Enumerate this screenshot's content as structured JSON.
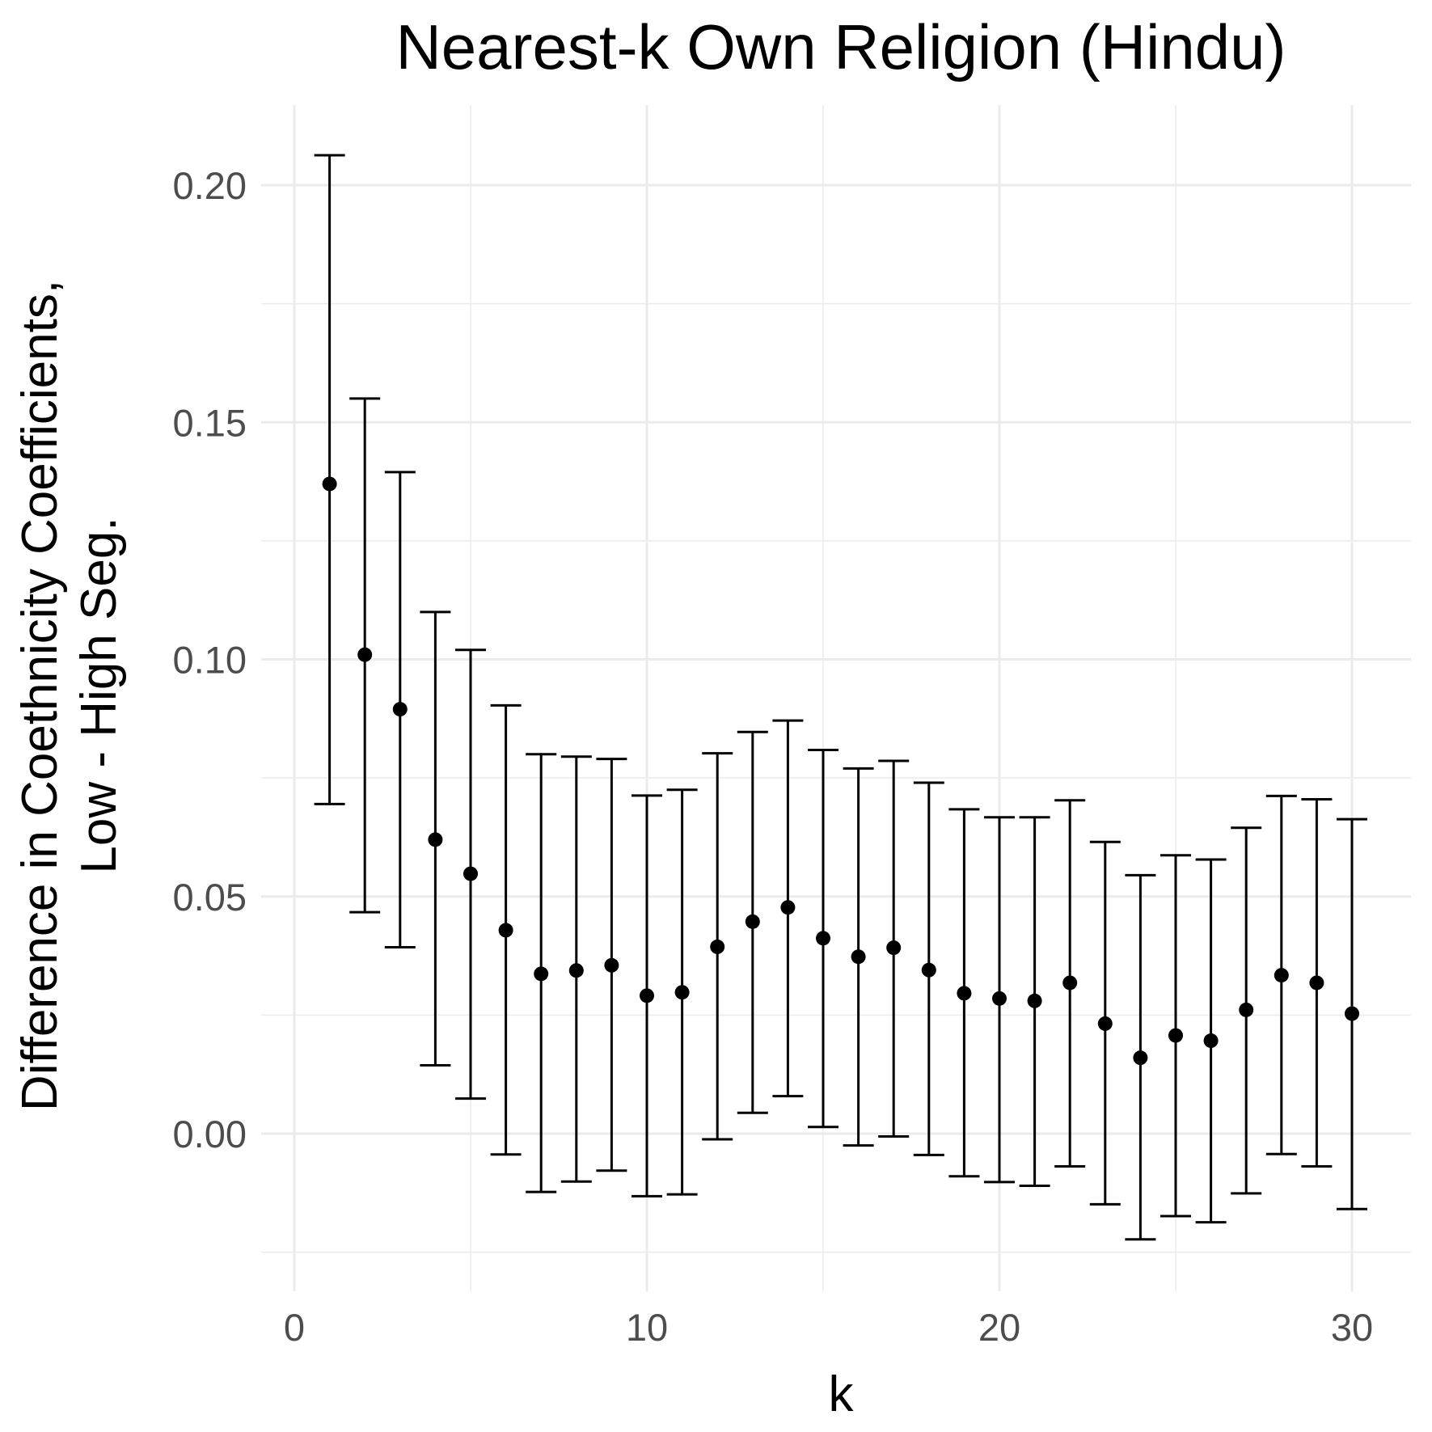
{
  "chart_data": {
    "type": "scatter",
    "title": "Nearest-k Own Religion (Hindu)",
    "xlabel": "k",
    "ylabel_lines": [
      "Difference in Coethnicity Coefficients,",
      "Low - High Seg."
    ],
    "xlim": [
      -1,
      31.5
    ],
    "ylim": [
      -0.032,
      0.217
    ],
    "x_ticks": [
      0,
      10,
      20,
      30
    ],
    "x_tick_labels": [
      "0",
      "10",
      "20",
      "30"
    ],
    "y_ticks": [
      0,
      0.05,
      0.1,
      0.15,
      0.2
    ],
    "y_tick_labels": [
      "0.00",
      "0.05",
      "0.10",
      "0.15",
      "0.20"
    ],
    "grid": true,
    "legend": "none",
    "series": [
      {
        "x": [
          1,
          2,
          3,
          4,
          5,
          6,
          7,
          8,
          9,
          10,
          11,
          12,
          13,
          14,
          15,
          16,
          17,
          18,
          19,
          20,
          21,
          22,
          23,
          24,
          25,
          26,
          27,
          28,
          29,
          30
        ],
        "y": [
          0.137,
          0.101,
          0.0895,
          0.062,
          0.0548,
          0.0429,
          0.0337,
          0.0344,
          0.0355,
          0.0291,
          0.0298,
          0.0394,
          0.0447,
          0.0477,
          0.0412,
          0.0373,
          0.0392,
          0.0345,
          0.0296,
          0.0285,
          0.028,
          0.0318,
          0.0232,
          0.016,
          0.0207,
          0.0196,
          0.0261,
          0.0334,
          0.0318,
          0.0253
        ],
        "lower": [
          0.0695,
          0.0467,
          0.0393,
          0.0144,
          0.0074,
          -0.0044,
          -0.0123,
          -0.0101,
          -0.0078,
          -0.0132,
          -0.0128,
          -0.0012,
          0.0044,
          0.0079,
          0.0014,
          -0.0025,
          -0.0006,
          -0.0045,
          -0.009,
          -0.0102,
          -0.011,
          -0.0069,
          -0.0149,
          -0.0223,
          -0.0174,
          -0.0187,
          -0.0126,
          -0.0043,
          -0.0069,
          -0.0159
        ],
        "upper": [
          0.2063,
          0.155,
          0.1395,
          0.11,
          0.102,
          0.0903,
          0.08,
          0.0795,
          0.079,
          0.0713,
          0.0725,
          0.0802,
          0.0847,
          0.0871,
          0.0809,
          0.077,
          0.0786,
          0.074,
          0.0684,
          0.0667,
          0.0667,
          0.0703,
          0.0615,
          0.0545,
          0.0587,
          0.0578,
          0.0645,
          0.0712,
          0.0705,
          0.0663
        ]
      }
    ]
  }
}
